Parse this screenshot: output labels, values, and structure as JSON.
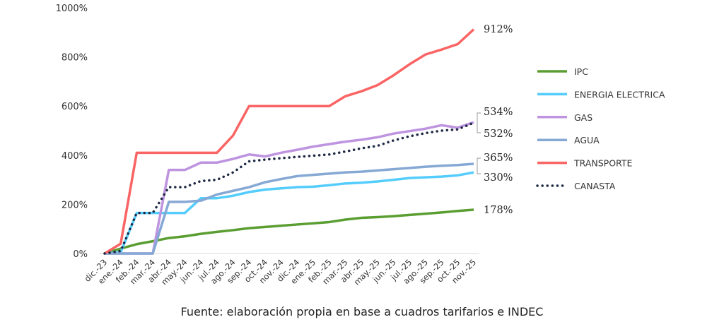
{
  "chart_data": {
    "type": "line",
    "title": "",
    "xlabel": "",
    "ylabel": "",
    "ylim": [
      0,
      1000
    ],
    "yticks": [
      "0%",
      "200%",
      "400%",
      "600%",
      "800%",
      "1000%"
    ],
    "ytick_values": [
      0,
      200,
      400,
      600,
      800,
      1000
    ],
    "categories": [
      "dic.-23",
      "ene.-24",
      "feb.-24",
      "mar.-24",
      "abr.-24",
      "may.-24",
      "jun.-24",
      "jul.-24",
      "ago.-24",
      "sep.-24",
      "oct.-24",
      "nov.-24",
      "dic.-24",
      "ene.-25",
      "feb.-25",
      "mar.-25",
      "abr.-25",
      "may.-25",
      "jun.-25",
      "jul.-25",
      "ago.-25",
      "sep.-25",
      "oct.-25",
      "nov.-25"
    ],
    "legend_position": "right",
    "series": [
      {
        "name": "IPC",
        "color": "#5a9e32",
        "dash": false,
        "end_label": "178%",
        "values": [
          0,
          20,
          38,
          50,
          63,
          70,
          80,
          88,
          95,
          103,
          108,
          113,
          118,
          123,
          128,
          138,
          145,
          148,
          152,
          157,
          162,
          167,
          173,
          178
        ]
      },
      {
        "name": "ENERGIA ELECTRICA",
        "color": "#55cdfc",
        "dash": false,
        "end_label": "330%",
        "values": [
          0,
          5,
          165,
          165,
          165,
          165,
          225,
          225,
          235,
          250,
          260,
          265,
          270,
          272,
          278,
          285,
          288,
          293,
          300,
          307,
          310,
          313,
          318,
          330
        ]
      },
      {
        "name": "GAS",
        "color": "#be94e0",
        "dash": false,
        "end_label": "534%",
        "values": [
          0,
          0,
          0,
          0,
          340,
          340,
          370,
          370,
          385,
          403,
          395,
          410,
          422,
          435,
          445,
          455,
          463,
          473,
          488,
          498,
          508,
          522,
          512,
          534
        ]
      },
      {
        "name": "AGUA",
        "color": "#86a8d4",
        "dash": false,
        "end_label": "365%",
        "values": [
          0,
          0,
          0,
          0,
          210,
          210,
          215,
          240,
          255,
          270,
          290,
          303,
          315,
          320,
          325,
          330,
          333,
          338,
          343,
          348,
          353,
          357,
          360,
          365
        ]
      },
      {
        "name": "TRANSPORTE",
        "color": "#fa6464",
        "dash": false,
        "end_label": "912%",
        "values": [
          0,
          40,
          410,
          410,
          410,
          410,
          410,
          410,
          480,
          600,
          600,
          600,
          600,
          600,
          600,
          640,
          660,
          685,
          725,
          770,
          810,
          830,
          852,
          912
        ]
      },
      {
        "name": "CANASTA",
        "color": "#1e2a44",
        "dash": true,
        "end_label": "532%",
        "values": [
          0,
          10,
          165,
          165,
          270,
          270,
          295,
          300,
          330,
          375,
          382,
          388,
          393,
          398,
          403,
          415,
          428,
          438,
          460,
          477,
          490,
          500,
          505,
          532
        ]
      }
    ]
  },
  "source": "Fuente: elaboración propia en base a cuadros tarifarios e INDEC"
}
